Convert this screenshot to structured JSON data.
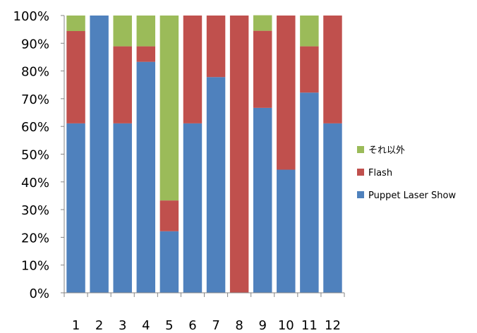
{
  "chart_data": {
    "type": "bar",
    "stacked": true,
    "percent_stacked": true,
    "categories": [
      "1",
      "2",
      "3",
      "4",
      "5",
      "6",
      "7",
      "8",
      "9",
      "10",
      "11",
      "12"
    ],
    "series": [
      {
        "name": "Puppet Laser Show",
        "color": "#4F81BD",
        "values": [
          61.1,
          100,
          61.1,
          83.3,
          22.2,
          61.1,
          77.8,
          0,
          66.7,
          44.4,
          72.2,
          61.1
        ]
      },
      {
        "name": "Flash",
        "color": "#C0504D",
        "values": [
          33.3,
          0,
          27.8,
          5.6,
          11.1,
          38.9,
          22.2,
          100,
          27.8,
          55.6,
          16.7,
          38.9
        ]
      },
      {
        "name": "それ以外",
        "color": "#9BBB59",
        "values": [
          5.6,
          0,
          11.1,
          11.1,
          66.7,
          0,
          0,
          0,
          5.6,
          0,
          11.1,
          0
        ]
      }
    ],
    "y_ticks": [
      "0%",
      "10%",
      "20%",
      "30%",
      "40%",
      "50%",
      "60%",
      "70%",
      "80%",
      "90%",
      "100%"
    ],
    "ylim": [
      0,
      100
    ],
    "grid": false,
    "legend_position": "right",
    "legend_order": [
      "それ以外",
      "Flash",
      "Puppet Laser Show"
    ]
  }
}
